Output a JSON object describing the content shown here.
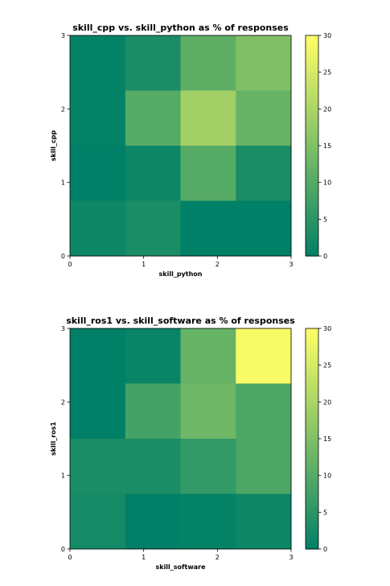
{
  "chart_data": [
    {
      "type": "heatmap",
      "title": "skill_cpp vs. skill_python as % of responses",
      "xlabel": "skill_python",
      "ylabel": "skill_cpp",
      "x_ticks": [
        "0",
        "1",
        "2",
        "3"
      ],
      "y_ticks": [
        "0",
        "1",
        "2",
        "3"
      ],
      "xlim": [
        0,
        3
      ],
      "ylim": [
        0,
        3
      ],
      "colorbar": {
        "min": 0,
        "max": 30,
        "ticks": [
          "0",
          "5",
          "10",
          "15",
          "20",
          "25",
          "30"
        ]
      },
      "colormap": "summer",
      "values_top_to_bottom": [
        [
          0.5,
          3,
          11,
          15
        ],
        [
          0.5,
          10,
          19,
          12
        ],
        [
          0,
          1.5,
          10,
          3
        ],
        [
          1.5,
          3,
          0,
          0
        ]
      ]
    },
    {
      "type": "heatmap",
      "title": "skill_ros1 vs. skill_software as % of responses",
      "xlabel": "skill_software",
      "ylabel": "skill_ros1",
      "x_ticks": [
        "0",
        "1",
        "2",
        "3"
      ],
      "y_ticks": [
        "0",
        "1",
        "2",
        "3"
      ],
      "xlim": [
        0,
        3
      ],
      "ylim": [
        0,
        3
      ],
      "colorbar": {
        "min": 0,
        "max": 30,
        "ticks": [
          "0",
          "5",
          "10",
          "15",
          "20",
          "25",
          "30"
        ]
      },
      "colormap": "summer",
      "values_top_to_bottom": [
        [
          0,
          1,
          12,
          29
        ],
        [
          0,
          8,
          13,
          9
        ],
        [
          3,
          3,
          6,
          9
        ],
        [
          2.5,
          0,
          0.5,
          1.5
        ]
      ]
    }
  ]
}
